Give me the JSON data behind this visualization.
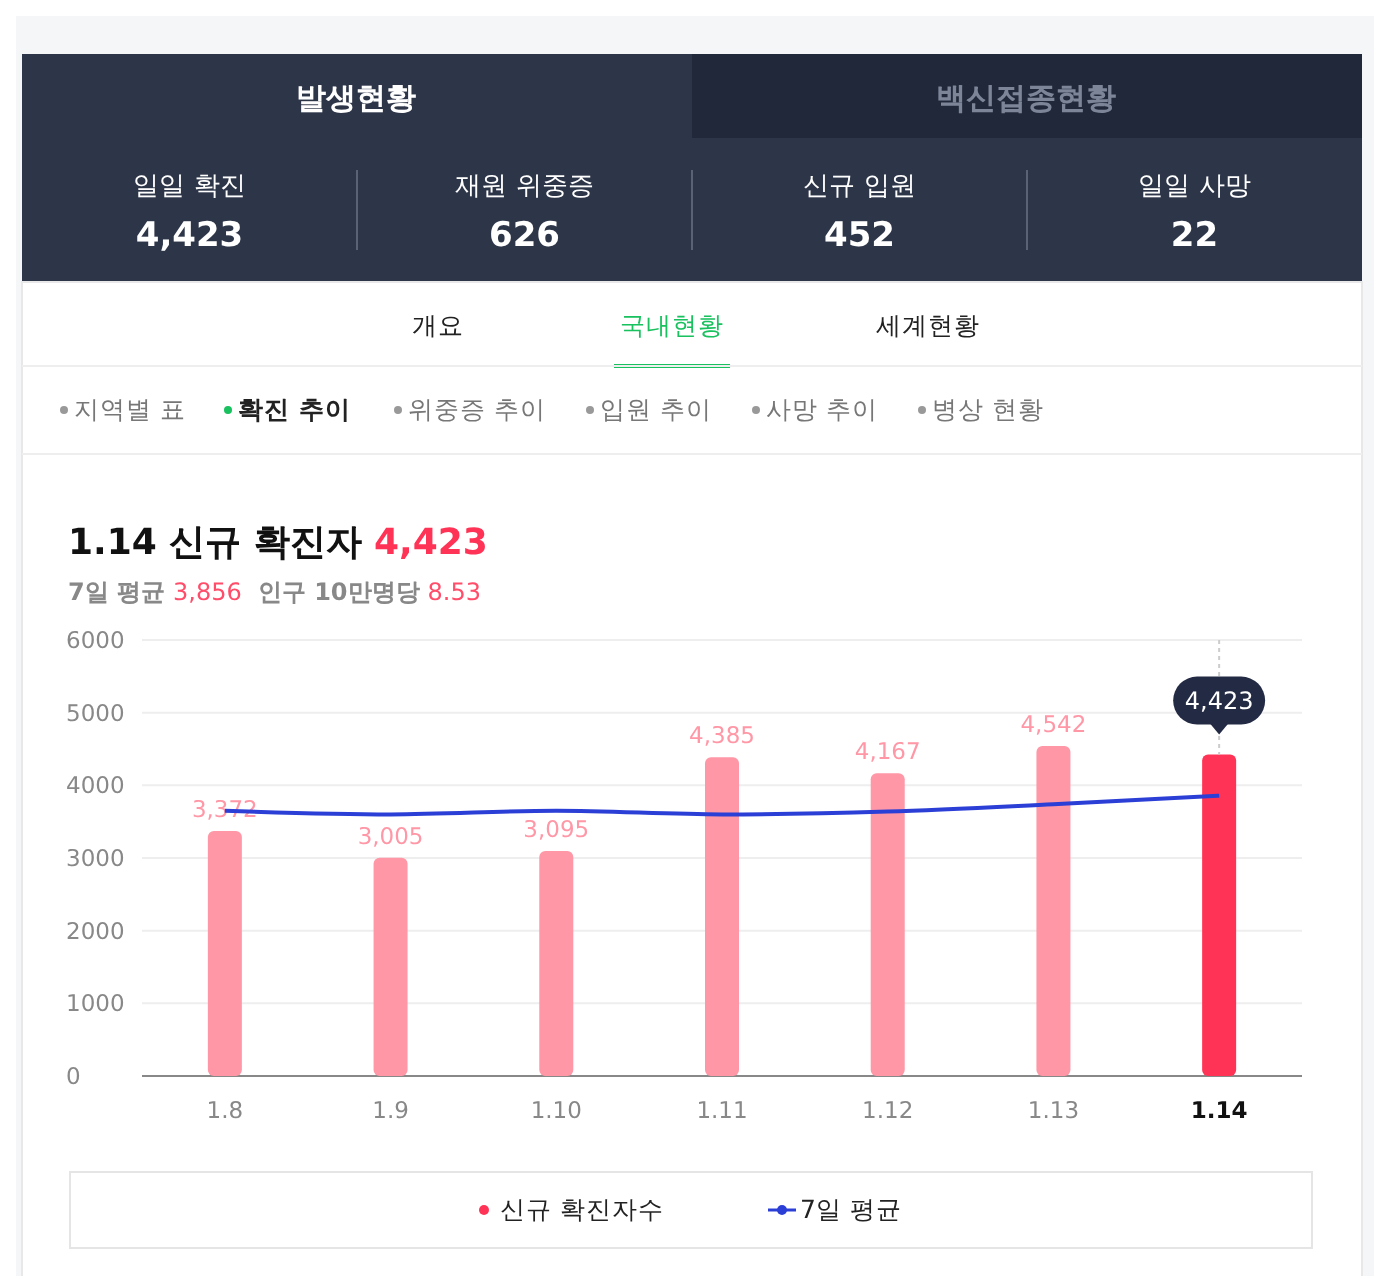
{
  "chart_data": [
    {
      "type": "other",
      "categories": [
        "일일 확진",
        "재원 위중증",
        "신규 입원",
        "일일 사망"
      ],
      "value_labels": [
        "4,423",
        "626",
        "452",
        "22"
      ],
      "annotations": [
        "발생현황",
        "백신접종현황",
        "개요",
        "국내현황",
        "세계현황",
        "지역별 표",
        "확진 추이",
        "위중증 추이",
        "입원 추이",
        "사망 추이",
        "병상 현황"
      ]
    },
    {
      "type": "bar",
      "title": "1.14 신규 확진자 4,423",
      "subtitle": "7일 평균 3,856  인구 10만명당 8.53",
      "categories": [
        "1.8",
        "1.9",
        "1.10",
        "1.11",
        "1.12",
        "1.13",
        "1.14"
      ],
      "series": [
        {
          "name": "신규 확진자수",
          "type": "bar",
          "color": "#ff3355",
          "colors": [
            "#ff97a6",
            "#ff97a6",
            "#ff97a6",
            "#ff97a6",
            "#ff97a6",
            "#ff97a6",
            "#ff3355"
          ],
          "values": [
            3372,
            3005,
            3095,
            4385,
            4167,
            4542,
            4423
          ],
          "value_labels": [
            "3,372",
            "3,005",
            "3,095",
            "4,385",
            "4,167",
            "4,542",
            "4,423"
          ]
        },
        {
          "name": "7일 평균",
          "type": "line",
          "color": "#2b3fd6",
          "values": [
            3650,
            3600,
            3650,
            3600,
            3640,
            3740,
            3856
          ]
        }
      ],
      "ylim": [
        0,
        6000
      ],
      "yticks": [
        0,
        1000,
        2000,
        3000,
        4000,
        5000,
        6000
      ],
      "grid": "y",
      "legend": "bottom"
    }
  ]
}
